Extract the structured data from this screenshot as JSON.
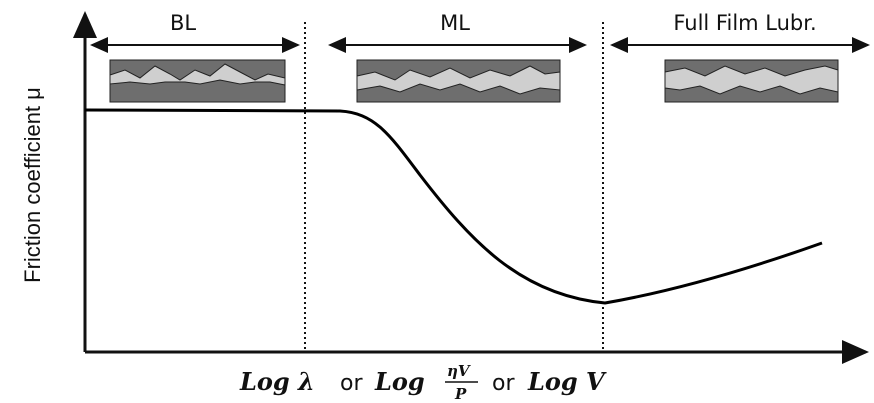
{
  "regions": [
    {
      "label": "BL"
    },
    {
      "label": "ML"
    },
    {
      "label": "Full Film Lubr."
    }
  ],
  "y_axis": {
    "label": "Friction coefficient μ"
  },
  "x_axis": {
    "parts": [
      "Log λ",
      "or",
      "Log",
      "ηV",
      "P",
      "or",
      "Log V"
    ]
  }
}
